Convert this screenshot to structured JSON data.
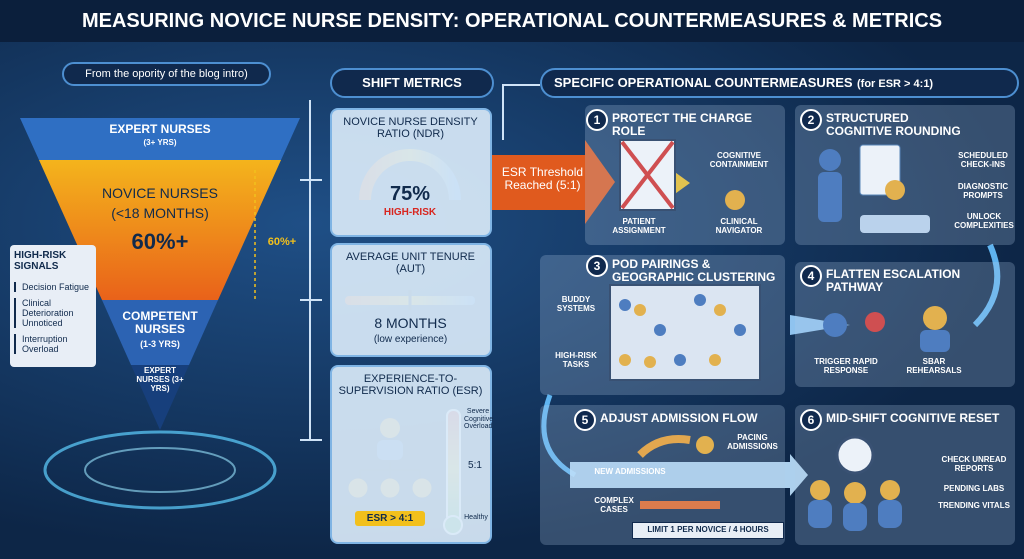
{
  "header": {
    "title": "MEASURING NOVICE NURSE DENSITY: OPERATIONAL COUNTERMEASURES & METRICS"
  },
  "intro_note": "From the opority of the blog intro)",
  "pyramid": {
    "expert_top": {
      "title": "EXPERT NURSES",
      "years": "(3+ YRS)"
    },
    "novice": {
      "title": "NOVICE NURSES",
      "months": "(<18 MONTHS)",
      "share": "60%+"
    },
    "competent": {
      "title": "COMPETENT NURSES",
      "years": "(1-3 YRS)"
    },
    "expert_bottom": "EXPERT NURSES (3+ YRS)",
    "side_label": "60%+"
  },
  "high_risk": {
    "title": "HIGH-RISK SIGNALS",
    "items": [
      "Decision Fatigue",
      "Clinical Deterioration Unnoticed",
      "Interruption Overload"
    ]
  },
  "shift_metrics": {
    "title": "SHIFT METRICS",
    "ndr": {
      "title": "NOVICE NURSE DENSITY RATIO (NDR)",
      "value": "75%",
      "status": "HIGH-RISK"
    },
    "aut": {
      "title": "AVERAGE UNIT TENURE (AUT)",
      "value": "8 MONTHS",
      "note": "(low experience)"
    },
    "esr": {
      "title": "EXPERIENCE-TO-SUPERVISION RATIO (ESR)",
      "badge": "ESR > 4:1",
      "scale_top": "Severe Cognitive Overload",
      "scale_mid": "5:1",
      "scale_bottom": "Healthy"
    }
  },
  "threshold": "ESR Threshold Reached (5:1)",
  "countermeasures": {
    "title": "SPECIFIC OPERATIONAL COUNTERMEASURES",
    "qualifier": "(for ESR > 4:1)",
    "items": [
      {
        "number": "1",
        "title": "PROTECT THE CHARGE ROLE",
        "labels": [
          "PATIENT ASSIGNMENT",
          "COGNITIVE CONTAINMENT",
          "CLINICAL NAVIGATOR"
        ]
      },
      {
        "number": "2",
        "title": "STRUCTURED COGNITIVE ROUNDING",
        "labels": [
          "SCHEDULED CHECK-INS",
          "DIAGNOSTIC PROMPTS",
          "UNLOCK COMPLEXITIES"
        ]
      },
      {
        "number": "3",
        "title": "POD PAIRINGS & GEOGRAPHIC CLUSTERING",
        "labels": [
          "BUDDY SYSTEMS",
          "HIGH-RISK TASKS"
        ]
      },
      {
        "number": "4",
        "title": "FLATTEN ESCALATION PATHWAY",
        "labels": [
          "TRIGGER RAPID RESPONSE",
          "SBAR REHEARSALS"
        ]
      },
      {
        "number": "5",
        "title": "ADJUST ADMISSION FLOW",
        "labels": [
          "PACING ADMISSIONS",
          "NEW ADMISSIONS",
          "COMPLEX CASES",
          "LIMIT 1 PER NOVICE / 4 HOURS"
        ]
      },
      {
        "number": "6",
        "title": "MID-SHIFT COGNITIVE RESET",
        "labels": [
          "CHECK UNREAD REPORTS",
          "PENDING LABS",
          "TRENDING VITALS"
        ]
      }
    ]
  }
}
